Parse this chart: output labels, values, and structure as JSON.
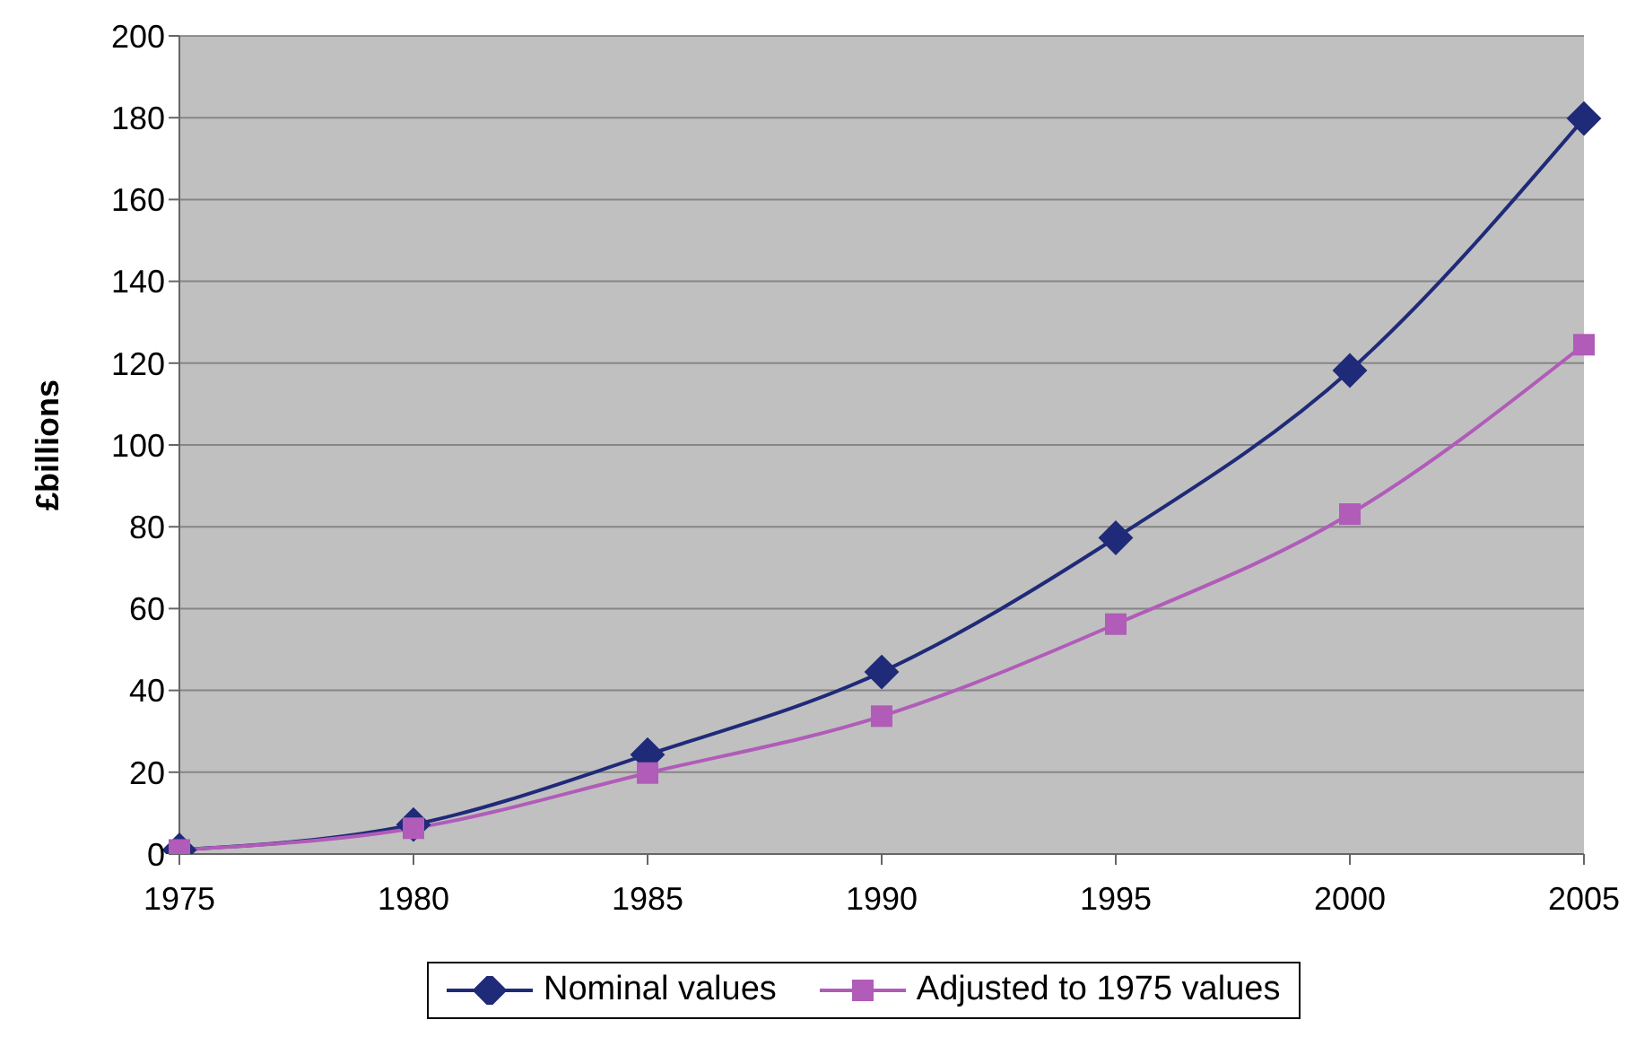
{
  "chart_data": {
    "type": "line",
    "ylabel": "£billions",
    "categories": [
      "1975",
      "1980",
      "1985",
      "1990",
      "1995",
      "2000",
      "2005"
    ],
    "series": [
      {
        "name": "Nominal values",
        "color": "#1f2a78",
        "marker": "diamond",
        "values": [
          1,
          7.2,
          24.3,
          44.5,
          77.3,
          118.2,
          179.8
        ]
      },
      {
        "name": "Adjusted to 1975 values",
        "color": "#b05cb8",
        "marker": "square",
        "values": [
          1,
          6.3,
          19.8,
          33.7,
          56.2,
          83.1,
          124.5
        ]
      }
    ],
    "ylim": [
      0,
      200
    ],
    "yticks": [
      0,
      20,
      40,
      60,
      80,
      100,
      120,
      140,
      160,
      180,
      200
    ],
    "grid": "y",
    "legend": "bottom"
  }
}
